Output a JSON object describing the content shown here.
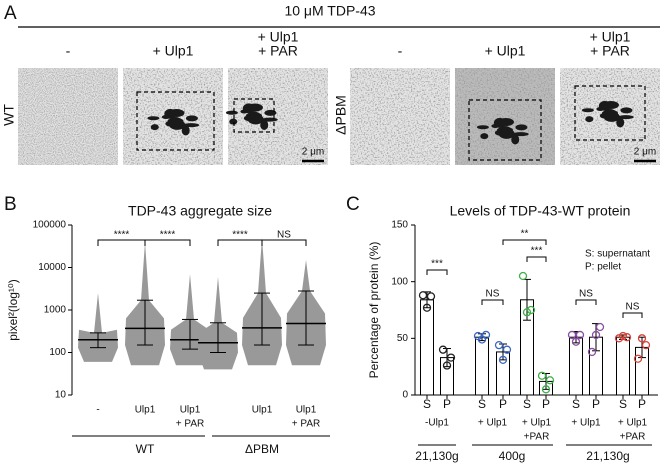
{
  "panel_a": {
    "letter": "A",
    "title": "10 μM TDP-43",
    "columns": [
      [
        "-"
      ],
      [
        "+ Ulp1"
      ],
      [
        "+ Ulp1",
        "+ PAR"
      ]
    ],
    "rows": [
      "WT",
      "ΔPBM"
    ],
    "scale_bar": "2 μm"
  },
  "chart_data": [
    {
      "type": "dotplot",
      "letter": "B",
      "title": "TDP-43 aggregate size",
      "ylabel": "pixel²(log¹⁰)",
      "log_y": true,
      "ylim": [
        10,
        100000
      ],
      "yticks": [
        10,
        100,
        1000,
        10000,
        100000
      ],
      "color": "#999999",
      "categories": [
        [
          "-"
        ],
        [
          "Ulp1"
        ],
        [
          "Ulp1",
          "+ PAR"
        ],
        null,
        [
          "Ulp1"
        ],
        [
          "Ulp1",
          "+ PAR"
        ]
      ],
      "groups": [
        "WT",
        "ΔPBM"
      ],
      "median": [
        200,
        370,
        200,
        170,
        380,
        480
      ],
      "lower": [
        130,
        150,
        120,
        100,
        150,
        150
      ],
      "upper": [
        290,
        1700,
        600,
        500,
        2500,
        2800
      ],
      "min": [
        60,
        50,
        50,
        40,
        50,
        50
      ],
      "max": [
        2500,
        40000,
        7000,
        6000,
        50000,
        15000
      ],
      "significance": [
        "****",
        "****",
        "****",
        "NS"
      ]
    },
    {
      "type": "bar",
      "letter": "C",
      "title": "Levels of TDP-43-WT protein",
      "ylabel": "Percentage of protein (%)",
      "ylim": [
        0,
        150
      ],
      "yticks": [
        0,
        50,
        100,
        150
      ],
      "legend": [
        "S: supernatant",
        "P: pellet"
      ],
      "categories": [
        "S",
        "P",
        "S",
        "P",
        "S",
        "P",
        "S",
        "P",
        "S",
        "P"
      ],
      "values": [
        84,
        33,
        51,
        38,
        84,
        12,
        51,
        51,
        51,
        42
      ],
      "errors": [
        7,
        8,
        3,
        7,
        18,
        7,
        5,
        12,
        2,
        9
      ],
      "points": [
        [
          88,
          77,
          87
        ],
        [
          40,
          26,
          33
        ],
        [
          52,
          49,
          53
        ],
        [
          44,
          31,
          40
        ],
        [
          105,
          73,
          75
        ],
        [
          17,
          5,
          13
        ],
        [
          53,
          47,
          53
        ],
        [
          38,
          53,
          60
        ],
        [
          50,
          52,
          51
        ],
        [
          32,
          50,
          44
        ]
      ],
      "groups": [
        [
          "-Ulp1"
        ],
        [
          "+ Ulp1"
        ],
        [
          "+ Ulp1",
          "+PAR"
        ],
        [
          "+ Ulp1"
        ],
        [
          "+ Ulp1",
          "+PAR"
        ]
      ],
      "group_colors": [
        "#222222",
        "#3a66c4",
        "#3fae49",
        "#8a4ea3",
        "#d9443a"
      ],
      "centrifuge": [
        "21,130g",
        "400g",
        "21,130g"
      ],
      "significance": [
        "***",
        "NS",
        "**",
        "***",
        "NS",
        "NS"
      ]
    }
  ]
}
